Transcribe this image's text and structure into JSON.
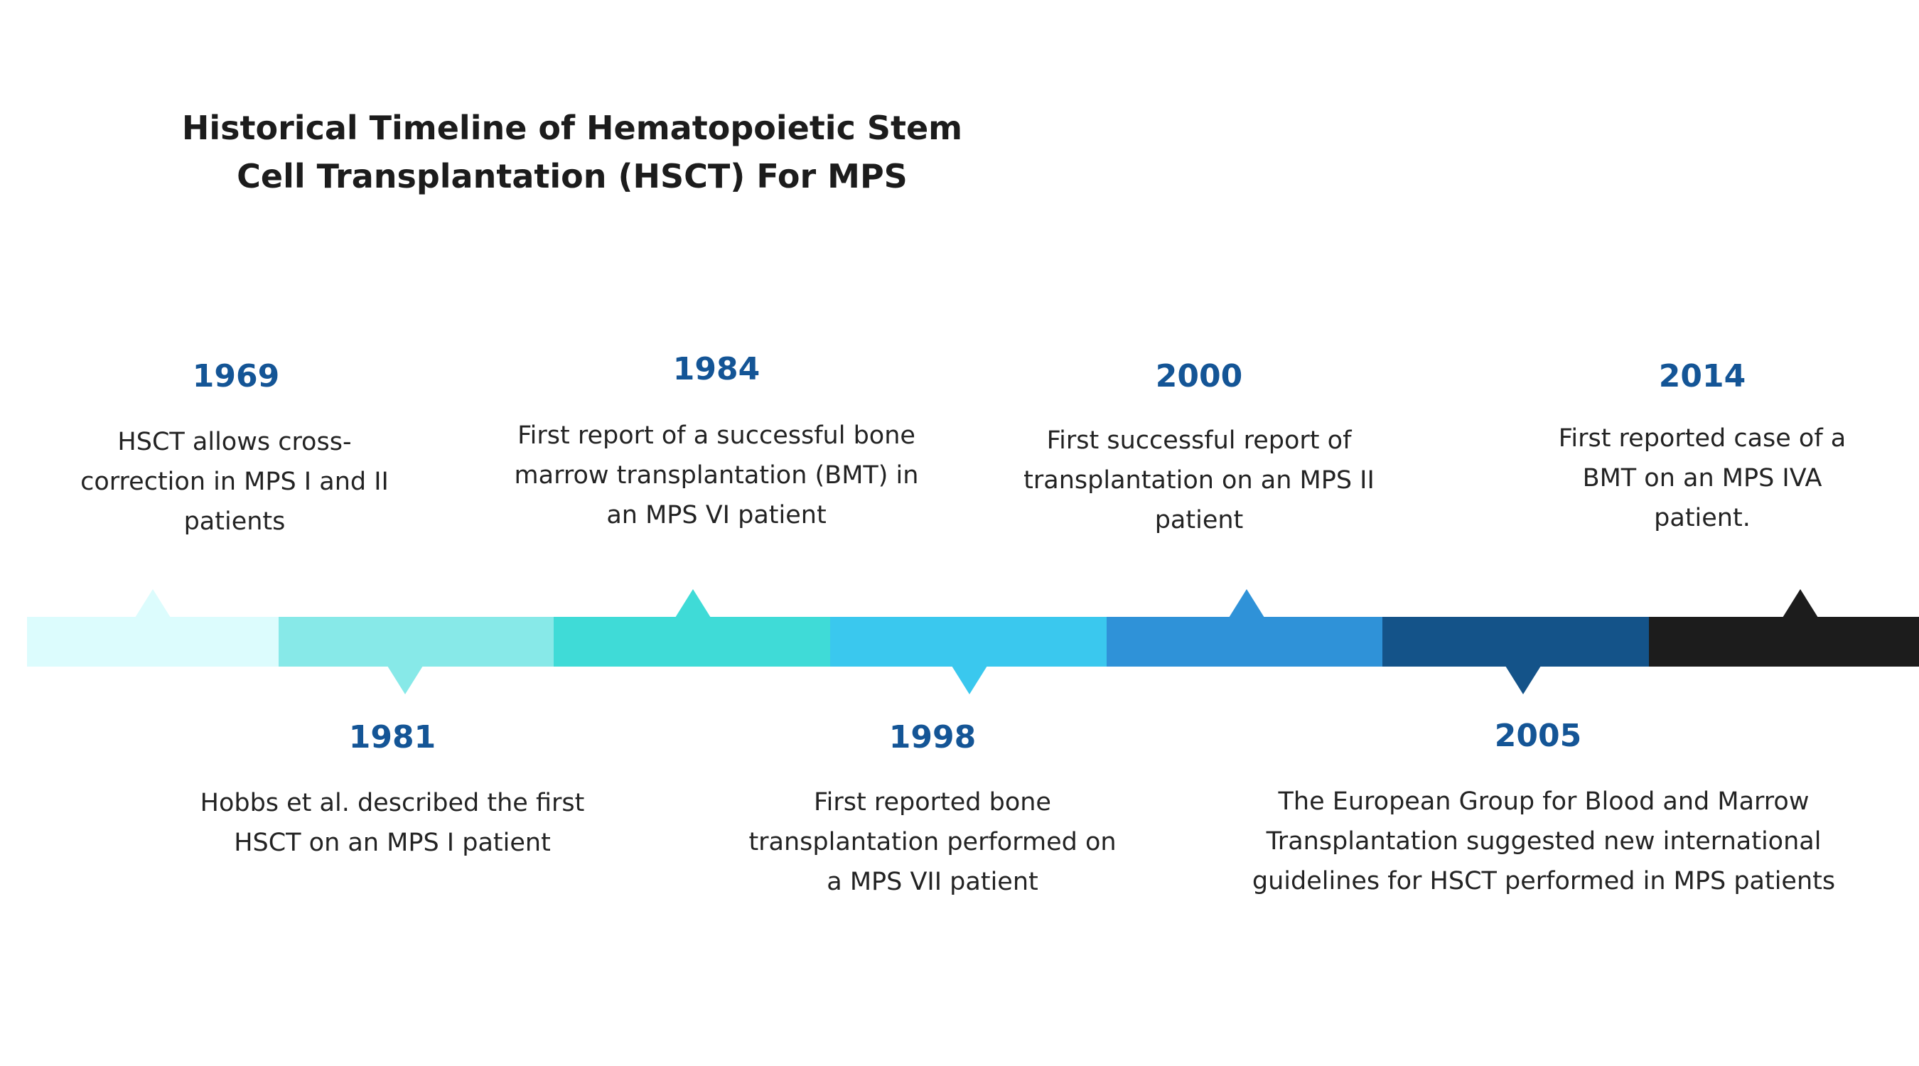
{
  "title": "Historical Timeline of Hematopoietic Stem Cell Transplantation (HSCT) For MPS",
  "colors": {
    "year_text": "#145596",
    "body_text": "#232323",
    "segments": [
      "#dcfcfd",
      "#87e9e8",
      "#3fdbd7",
      "#3ac8ee",
      "#2f92d8",
      "#145389",
      "#1c1c1c"
    ]
  },
  "events": [
    {
      "year": "1969",
      "text": "HSCT allows cross-correction in MPS I and II patients",
      "side": "above"
    },
    {
      "year": "1981",
      "text": "Hobbs et al. described the first HSCT on an MPS I patient",
      "side": "below"
    },
    {
      "year": "1984",
      "text": "First report of a successful bone marrow transplantation (BMT) in an MPS VI patient",
      "side": "above"
    },
    {
      "year": "1998",
      "text": "First reported bone transplantation performed on a MPS VII patient",
      "side": "below"
    },
    {
      "year": "2000",
      "text": "First successful report of transplantation on an MPS II patient",
      "side": "above"
    },
    {
      "year": "2005",
      "text": "The European Group for Blood and Marrow Transplantation suggested new international guidelines for HSCT performed in MPS patients",
      "side": "below"
    },
    {
      "year": "2014",
      "text": "First reported case of a BMT on an MPS IVA patient.",
      "side": "above"
    }
  ]
}
